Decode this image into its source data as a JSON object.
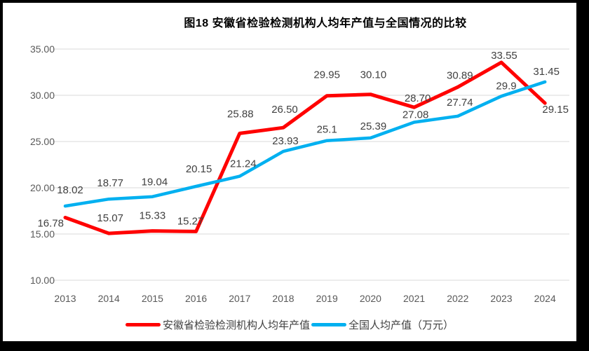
{
  "title": "图18 安徽省检验检测机构人均年产值与全国情况的比较",
  "chart_data": {
    "type": "line",
    "categories": [
      "2013",
      "2014",
      "2015",
      "2016",
      "2017",
      "2018",
      "2019",
      "2020",
      "2021",
      "2022",
      "2023",
      "2024"
    ],
    "series": [
      {
        "name": "安徽省检验检测机构人均年产值",
        "color": "#ff0000",
        "values": [
          16.78,
          15.07,
          15.33,
          15.27,
          25.88,
          26.5,
          29.95,
          30.1,
          28.7,
          30.89,
          33.55,
          29.15
        ],
        "labels": [
          "16.78",
          "15.07",
          "15.33",
          "15.27",
          "25.88",
          "26.50",
          "29.95",
          "30.10",
          "28.70",
          "30.89",
          "33.55",
          "29.15"
        ]
      },
      {
        "name": "全国人均产值（万元）",
        "color": "#00b0f0",
        "values": [
          18.02,
          18.77,
          19.04,
          20.15,
          21.24,
          23.93,
          25.1,
          25.39,
          27.08,
          27.74,
          29.9,
          31.45
        ],
        "labels": [
          "18.02",
          "18.77",
          "19.04",
          "20.15",
          "21.24",
          "23.93",
          "25.1",
          "25.39",
          "27.08",
          "27.74",
          "29.9",
          "31.45"
        ]
      }
    ],
    "ylim": [
      10,
      35
    ],
    "yticks": [
      "35.00",
      "30.00",
      "25.00",
      "20.00",
      "15.00",
      "10.00"
    ],
    "ytick_values": [
      35,
      30,
      25,
      20,
      15,
      10
    ],
    "grid": true,
    "data_labels": true,
    "legend_position": "bottom"
  }
}
